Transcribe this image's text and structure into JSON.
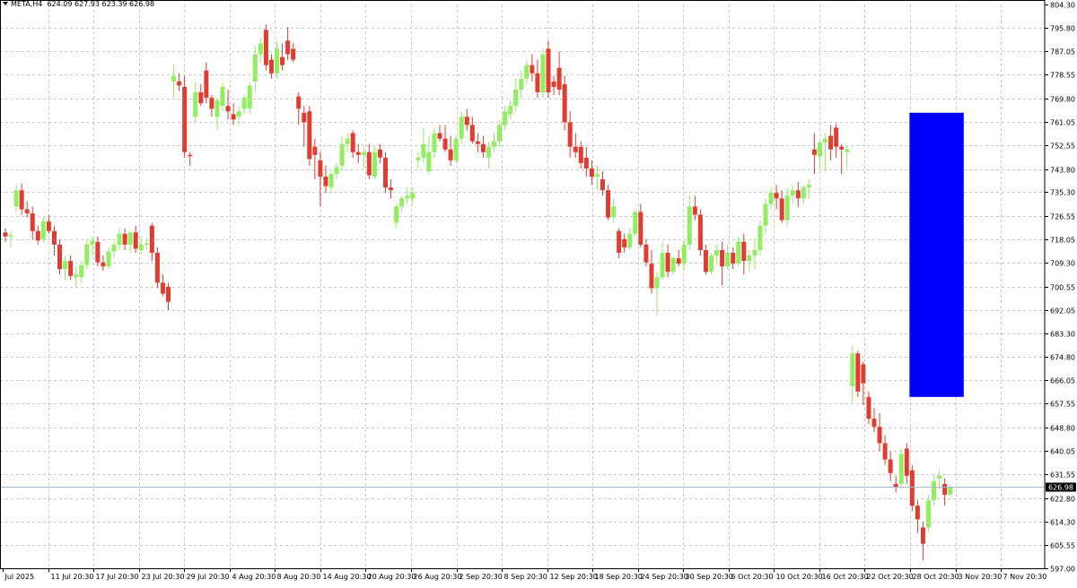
{
  "header": {
    "symbol": "META,H4",
    "ohlc": "624.09 627.93 623.39 626.98"
  },
  "colors": {
    "background": "#ffffff",
    "grid": "#c8c8c8",
    "bull": "#90ee60",
    "bear": "#e03c31",
    "highlight": "#0000ff",
    "current_price_line": "#a8b8c8",
    "price_tag_bg": "#000000"
  },
  "chart_data": {
    "type": "candlestick",
    "symbol": "META",
    "timeframe": "H4",
    "ylim": [
      597.0,
      804.3
    ],
    "y_ticks": [
      "804.30",
      "795.80",
      "787.05",
      "778.55",
      "769.80",
      "761.05",
      "752.55",
      "743.80",
      "735.30",
      "726.55",
      "718.05",
      "709.30",
      "700.55",
      "692.05",
      "683.30",
      "674.80",
      "666.05",
      "657.55",
      "648.80",
      "640.05",
      "631.55",
      "622.80",
      "614.30",
      "605.55",
      "597.00"
    ],
    "x_ticks": [
      "Jul 2025",
      "11 Jul 20:30",
      "17 Jul 20:30",
      "23 Jul 20:30",
      "29 Jul 20:30",
      "4 Aug 20:30",
      "8 Aug 20:30",
      "14 Aug 20:30",
      "20 Aug 20:30",
      "26 Aug 20:30",
      "2 Sep 20:30",
      "8 Sep 20:30",
      "12 Sep 20:30",
      "18 Sep 20:30",
      "24 Sep 20:30",
      "30 Sep 20:30",
      "6 Oct 20:30",
      "10 Oct 20:30",
      "16 Oct 20:30",
      "22 Oct 20:30",
      "28 Oct 20:30",
      "3 Nov 20:30",
      "7 Nov 20:30"
    ],
    "current_price": "626.98",
    "highlight_zone": {
      "from_candle": 167,
      "to_candle": 176,
      "price_low": 660.0,
      "price_high": 764.5
    },
    "candles": [
      [
        720.5,
        722.0,
        717.0,
        719.0
      ],
      [
        719.0,
        721.0,
        715.0,
        719.5
      ],
      [
        730.0,
        738.0,
        728.0,
        736.0
      ],
      [
        736.0,
        738.5,
        727.0,
        729.0
      ],
      [
        729.0,
        732.0,
        726.0,
        727.5
      ],
      [
        727.5,
        730.0,
        718.0,
        721.0
      ],
      [
        721.0,
        723.0,
        716.0,
        717.5
      ],
      [
        718.0,
        726.0,
        716.5,
        724.5
      ],
      [
        724.5,
        727.0,
        720.0,
        721.0
      ],
      [
        721.0,
        723.0,
        712.0,
        716.0
      ],
      [
        716.0,
        718.0,
        705.0,
        707.0
      ],
      [
        707.0,
        712.0,
        703.0,
        710.0
      ],
      [
        710.0,
        712.0,
        703.0,
        704.5
      ],
      [
        704.0,
        708.0,
        700.0,
        705.0
      ],
      [
        704.0,
        710.0,
        702.0,
        708.5
      ],
      [
        708.5,
        718.0,
        707.0,
        716.0
      ],
      [
        716.0,
        719.0,
        712.0,
        717.5
      ],
      [
        717.0,
        719.0,
        708.0,
        709.5
      ],
      [
        709.5,
        712.0,
        706.5,
        708.0
      ],
      [
        708.0,
        715.0,
        707.0,
        713.5
      ],
      [
        713.5,
        717.0,
        711.0,
        716.0
      ],
      [
        716.0,
        722.0,
        714.0,
        720.0
      ],
      [
        720.0,
        722.0,
        714.0,
        716.0
      ],
      [
        716.0,
        721.0,
        713.0,
        720.5
      ],
      [
        720.5,
        723.0,
        713.0,
        714.5
      ],
      [
        714.0,
        719.0,
        712.0,
        716.0
      ],
      [
        716.0,
        718.0,
        714.0,
        716.5
      ],
      [
        723.0,
        724.0,
        710.0,
        713.0
      ],
      [
        713.0,
        715.0,
        700.0,
        702.0
      ],
      [
        702.0,
        705.0,
        697.0,
        698.0
      ],
      [
        700.5,
        702.0,
        692.0,
        695.0
      ],
      [
        776.0,
        782.0,
        770.0,
        778.0
      ],
      [
        776.0,
        779.0,
        772.5,
        774.5
      ],
      [
        774.0,
        778.0,
        748.0,
        750.0
      ],
      [
        749.0,
        750.0,
        745.0,
        748.5
      ],
      [
        763.0,
        776.0,
        761.0,
        772.0
      ],
      [
        772.0,
        775.0,
        767.0,
        768.0
      ],
      [
        780.0,
        783.0,
        768.0,
        770.0
      ],
      [
        770.0,
        771.0,
        763.0,
        766.0
      ],
      [
        763.0,
        770.0,
        758.0,
        769.0
      ],
      [
        767.0,
        776.0,
        765.0,
        774.0
      ],
      [
        767.0,
        773.0,
        762.0,
        765.0
      ],
      [
        764.0,
        768.0,
        760.0,
        762.0
      ],
      [
        763.0,
        767.0,
        760.0,
        765.0
      ],
      [
        766.0,
        771.0,
        764.0,
        770.0
      ],
      [
        766.0,
        776.0,
        764.0,
        774.5
      ],
      [
        776.0,
        789.0,
        772.0,
        786.0
      ],
      [
        786.0,
        792.0,
        783.0,
        790.0
      ],
      [
        795.0,
        797.0,
        780.0,
        782.0
      ],
      [
        784.0,
        786.0,
        777.0,
        779.0
      ],
      [
        779.0,
        791.0,
        777.0,
        788.0
      ],
      [
        785.0,
        790.0,
        780.0,
        782.0
      ],
      [
        791.0,
        796.0,
        784.0,
        786.0
      ],
      [
        788.0,
        790.0,
        783.0,
        784.0
      ],
      [
        770.5,
        772.0,
        760.0,
        766.0
      ],
      [
        764.5,
        767.0,
        752.0,
        761.0
      ],
      [
        765.0,
        767.0,
        745.0,
        747.5
      ],
      [
        752.0,
        755.0,
        740.0,
        749.0
      ],
      [
        747.0,
        750.0,
        730.0,
        741.0
      ],
      [
        741.0,
        745.0,
        735.0,
        737.5
      ],
      [
        737.0,
        743.0,
        735.0,
        742.0
      ],
      [
        742.0,
        746.0,
        740.0,
        744.5
      ],
      [
        745.0,
        756.0,
        743.0,
        753.0
      ],
      [
        753.0,
        757.0,
        750.0,
        755.0
      ],
      [
        757.0,
        758.0,
        748.0,
        750.0
      ],
      [
        750.0,
        753.0,
        746.0,
        749.0
      ],
      [
        749.0,
        752.0,
        744.0,
        750.0
      ],
      [
        750.0,
        753.0,
        740.0,
        741.5
      ],
      [
        741.0,
        752.0,
        740.0,
        750.0
      ],
      [
        751.0,
        753.0,
        746.0,
        748.0
      ],
      [
        748.0,
        750.0,
        735.0,
        737.0
      ],
      [
        737.0,
        740.0,
        733.0,
        736.0
      ],
      [
        724.0,
        731.0,
        722.0,
        730.0
      ],
      [
        730.0,
        734.0,
        728.0,
        733.0
      ],
      [
        733.0,
        737.0,
        731.0,
        734.0
      ],
      [
        733.0,
        737.0,
        731.0,
        735.0
      ],
      [
        747.0,
        750.0,
        744.0,
        748.0
      ],
      [
        748.0,
        759.0,
        746.0,
        753.0
      ],
      [
        743.0,
        756.0,
        742.0,
        750.0
      ],
      [
        750.0,
        759.0,
        748.0,
        757.0
      ],
      [
        757.0,
        760.0,
        754.0,
        755.0
      ],
      [
        755.0,
        760.0,
        750.0,
        751.0
      ],
      [
        751.0,
        756.0,
        745.0,
        747.0
      ],
      [
        747.0,
        756.0,
        746.0,
        755.0
      ],
      [
        755.0,
        765.0,
        753.0,
        763.0
      ],
      [
        763.0,
        766.0,
        758.0,
        760.0
      ],
      [
        760.0,
        763.0,
        753.0,
        754.0
      ],
      [
        754.0,
        757.0,
        750.0,
        753.0
      ],
      [
        753.0,
        756.0,
        748.0,
        750.0
      ],
      [
        748.0,
        754.0,
        744.0,
        752.0
      ],
      [
        752.0,
        757.0,
        750.0,
        754.0
      ],
      [
        754.0,
        762.0,
        752.0,
        760.0
      ],
      [
        760.0,
        767.0,
        758.0,
        765.0
      ],
      [
        764.0,
        769.0,
        762.0,
        767.0
      ],
      [
        767.0,
        777.0,
        765.0,
        773.0
      ],
      [
        773.0,
        780.0,
        770.0,
        777.0
      ],
      [
        777.0,
        784.0,
        775.0,
        782.0
      ],
      [
        782.0,
        786.0,
        776.0,
        779.0
      ],
      [
        779.0,
        784.0,
        770.0,
        772.0
      ],
      [
        772.0,
        788.0,
        770.0,
        786.0
      ],
      [
        788.0,
        791.0,
        770.0,
        772.0
      ],
      [
        776.0,
        778.0,
        771.0,
        774.0
      ],
      [
        781.0,
        787.0,
        771.0,
        773.0
      ],
      [
        775.0,
        778.0,
        758.0,
        761.0
      ],
      [
        761.0,
        765.0,
        748.0,
        752.0
      ],
      [
        752.0,
        757.0,
        748.0,
        750.0
      ],
      [
        752.0,
        754.0,
        744.0,
        746.0
      ],
      [
        748.0,
        752.0,
        741.0,
        744.0
      ],
      [
        744.0,
        747.0,
        738.0,
        741.0
      ],
      [
        741.0,
        745.0,
        736.0,
        742.0
      ],
      [
        740.0,
        743.0,
        734.0,
        736.0
      ],
      [
        736.0,
        738.0,
        725.0,
        726.0
      ],
      [
        726.0,
        733.0,
        724.0,
        730.0
      ],
      [
        721.0,
        722.0,
        711.0,
        713.0
      ],
      [
        718.0,
        720.0,
        713.0,
        715.0
      ],
      [
        715.0,
        722.0,
        714.0,
        720.0
      ],
      [
        720.0,
        729.0,
        719.0,
        728.0
      ],
      [
        728.0,
        731.0,
        715.0,
        716.0
      ],
      [
        716.0,
        718.0,
        708.0,
        709.5
      ],
      [
        709.0,
        714.0,
        698.0,
        700.0
      ],
      [
        700.0,
        706.0,
        690.0,
        704.0
      ],
      [
        704.0,
        717.0,
        703.0,
        713.0
      ],
      [
        713.0,
        716.0,
        704.0,
        706.0
      ],
      [
        706.0,
        712.0,
        705.0,
        711.0
      ],
      [
        711.0,
        714.0,
        708.0,
        709.0
      ],
      [
        709.0,
        718.0,
        707.0,
        716.0
      ],
      [
        716.0,
        734.0,
        714.0,
        730.0
      ],
      [
        730.0,
        734.0,
        725.0,
        727.0
      ],
      [
        727.0,
        729.0,
        712.0,
        714.0
      ],
      [
        714.0,
        716.0,
        705.0,
        706.0
      ],
      [
        706.0,
        713.0,
        705.0,
        712.0
      ],
      [
        712.0,
        716.0,
        709.0,
        714.0
      ],
      [
        714.0,
        717.0,
        701.0,
        708.0
      ],
      [
        708.0,
        716.0,
        707.0,
        713.0
      ],
      [
        713.0,
        715.0,
        707.0,
        709.0
      ],
      [
        709.0,
        719.0,
        708.0,
        717.0
      ],
      [
        717.0,
        720.0,
        705.0,
        710.0
      ],
      [
        710.0,
        714.0,
        706.0,
        712.0
      ],
      [
        712.0,
        718.0,
        707.0,
        714.0
      ],
      [
        714.0,
        725.0,
        712.0,
        723.0
      ],
      [
        723.0,
        733.0,
        720.0,
        731.0
      ],
      [
        731.0,
        737.0,
        729.0,
        735.0
      ],
      [
        735.0,
        738.0,
        729.0,
        733.0
      ],
      [
        733.0,
        736.0,
        724.0,
        725.0
      ],
      [
        725.0,
        737.0,
        723.0,
        734.0
      ],
      [
        734.0,
        738.0,
        731.0,
        736.0
      ],
      [
        736.0,
        739.0,
        730.0,
        733.0
      ],
      [
        733.0,
        738.0,
        731.0,
        737.0
      ],
      [
        737.0,
        740.0,
        733.0,
        738.0
      ],
      [
        751.0,
        757.0,
        742.0,
        749.0
      ],
      [
        748.5,
        754.0,
        744.0,
        753.5
      ],
      [
        753.5,
        757.0,
        743.0,
        755.0
      ],
      [
        756.0,
        760.0,
        747.0,
        751.0
      ],
      [
        759.0,
        760.5,
        748.0,
        752.0
      ],
      [
        752.0,
        753.0,
        742.0,
        751.0
      ],
      [
        750.0,
        752.5,
        744.0,
        751.0
      ],
      [
        664.0,
        679.0,
        658.0,
        676.0
      ],
      [
        676.0,
        677.0,
        660.0,
        662.0
      ],
      [
        672.0,
        673.0,
        657.0,
        665.0
      ],
      [
        660.0,
        662.0,
        650.0,
        652.0
      ],
      [
        652.0,
        656.0,
        647.0,
        649.0
      ],
      [
        649.0,
        654.0,
        640.0,
        643.0
      ],
      [
        643.0,
        646.0,
        635.0,
        637.0
      ],
      [
        637.0,
        640.0,
        629.0,
        632.0
      ],
      [
        628.0,
        631.0,
        625.0,
        627.0
      ],
      [
        628.0,
        641.0,
        626.0,
        639.0
      ],
      [
        641.0,
        643.0,
        628.0,
        631.0
      ],
      [
        633.0,
        635.0,
        618.0,
        620.0
      ],
      [
        620.0,
        622.0,
        610.0,
        615.0
      ],
      [
        612.0,
        614.0,
        600.0,
        606.0
      ],
      [
        612.0,
        624.0,
        610.0,
        622.0
      ],
      [
        622.0,
        631.0,
        620.0,
        629.0
      ],
      [
        630.0,
        633.0,
        626.0,
        631.0
      ],
      [
        628.0,
        630.0,
        620.0,
        624.0
      ],
      [
        624.09,
        627.93,
        623.39,
        626.98
      ]
    ]
  }
}
